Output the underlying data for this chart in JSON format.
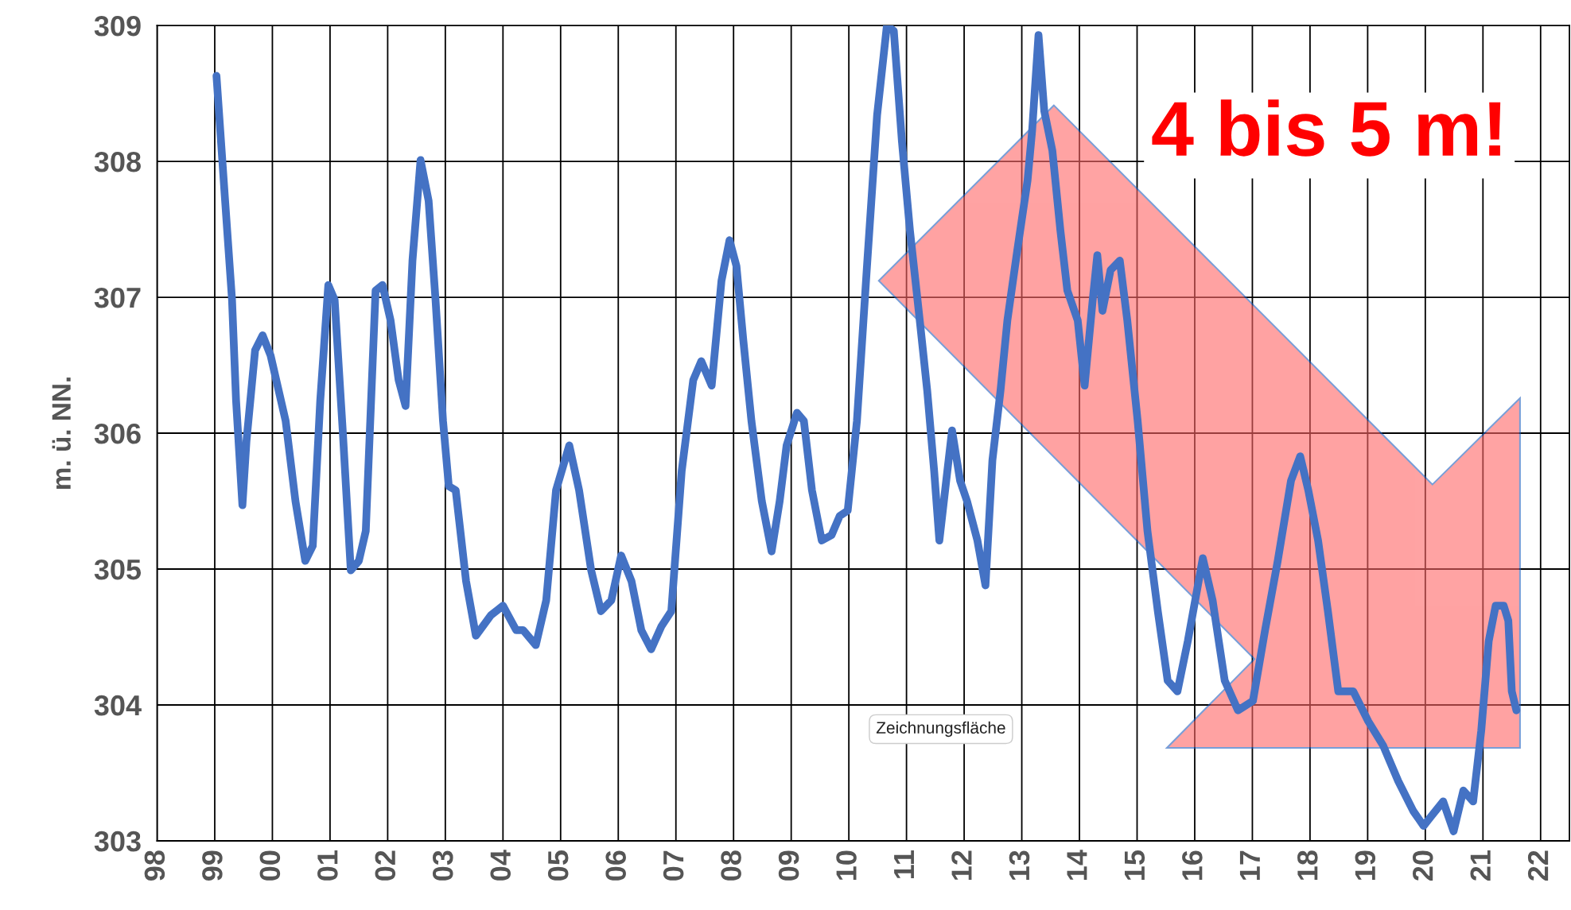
{
  "chart_data": {
    "type": "line",
    "ylabel": "m. ü. NN.",
    "annotations": [
      "4 bis 5 m!",
      "Zeichnungsfläche"
    ],
    "xlim": [
      1998,
      2022.5
    ],
    "ylim": [
      303,
      309
    ],
    "yticks": [
      303,
      304,
      305,
      306,
      307,
      308,
      309
    ],
    "xticks": [
      {
        "value": 1998,
        "label": "98"
      },
      {
        "value": 1999,
        "label": "99"
      },
      {
        "value": 2000,
        "label": "00"
      },
      {
        "value": 2001,
        "label": "01"
      },
      {
        "value": 2002,
        "label": "02"
      },
      {
        "value": 2003,
        "label": "03"
      },
      {
        "value": 2004,
        "label": "04"
      },
      {
        "value": 2005,
        "label": "05"
      },
      {
        "value": 2006,
        "label": "06"
      },
      {
        "value": 2007,
        "label": "07"
      },
      {
        "value": 2008,
        "label": "08"
      },
      {
        "value": 2009,
        "label": "09"
      },
      {
        "value": 2010,
        "label": "10"
      },
      {
        "value": 2011,
        "label": "11"
      },
      {
        "value": 2012,
        "label": "12"
      },
      {
        "value": 2013,
        "label": "13"
      },
      {
        "value": 2014,
        "label": "14"
      },
      {
        "value": 2015,
        "label": "15"
      },
      {
        "value": 2016,
        "label": "16"
      },
      {
        "value": 2017,
        "label": "17"
      },
      {
        "value": 2018,
        "label": "18"
      },
      {
        "value": 2019,
        "label": "19"
      },
      {
        "value": 2020,
        "label": "20"
      },
      {
        "value": 2021,
        "label": "21"
      },
      {
        "value": 2022,
        "label": "22"
      }
    ],
    "grid": true,
    "legend": false,
    "marker": "none",
    "line_style": "solid",
    "series": [
      {
        "color": "#4472c4",
        "x": [
          1999.03,
          1999.18,
          1999.3,
          1999.37,
          1999.48,
          1999.55,
          1999.7,
          1999.83,
          1999.97,
          2000.23,
          2000.4,
          2000.57,
          2000.7,
          2000.83,
          2000.97,
          2001.08,
          2001.22,
          2001.36,
          2001.5,
          2001.62,
          2001.79,
          2001.91,
          2002.05,
          2002.19,
          2002.31,
          2002.43,
          2002.57,
          2002.71,
          2002.83,
          2002.96,
          2003.06,
          2003.18,
          2003.36,
          2003.53,
          2003.79,
          2004.0,
          2004.23,
          2004.35,
          2004.57,
          2004.75,
          2004.92,
          2005.15,
          2005.32,
          2005.53,
          2005.7,
          2005.88,
          2006.05,
          2006.23,
          2006.4,
          2006.57,
          2006.75,
          2006.92,
          2007.1,
          2007.3,
          2007.44,
          2007.62,
          2007.79,
          2007.93,
          2008.05,
          2008.17,
          2008.31,
          2008.49,
          2008.66,
          2008.8,
          2008.92,
          2009.1,
          2009.22,
          2009.36,
          2009.53,
          2009.7,
          2009.84,
          2009.98,
          2010.14,
          2010.31,
          2010.49,
          2010.66,
          2010.78,
          2010.92,
          2011.06,
          2011.23,
          2011.36,
          2011.48,
          2011.57,
          2011.67,
          2011.79,
          2011.93,
          2012.05,
          2012.23,
          2012.37,
          2012.49,
          2012.63,
          2012.75,
          2012.92,
          2013.1,
          2013.18,
          2013.29,
          2013.39,
          2013.53,
          2013.67,
          2013.79,
          2013.97,
          2014.09,
          2014.23,
          2014.31,
          2014.4,
          2014.54,
          2014.7,
          2014.83,
          2015.01,
          2015.18,
          2015.36,
          2015.53,
          2015.7,
          2015.88,
          2016.14,
          2016.31,
          2016.52,
          2016.75,
          2017.01,
          2017.22,
          2017.44,
          2017.67,
          2017.83,
          2017.97,
          2018.14,
          2018.31,
          2018.49,
          2018.75,
          2019.01,
          2019.27,
          2019.53,
          2019.79,
          2019.97,
          2020.1,
          2020.31,
          2020.49,
          2020.66,
          2020.83,
          2020.97,
          2021.1,
          2021.22,
          2021.36,
          2021.44,
          2021.5,
          2021.58
        ],
        "values": [
          308.63,
          307.71,
          306.98,
          306.24,
          305.47,
          305.94,
          306.61,
          306.72,
          306.57,
          306.09,
          305.5,
          305.06,
          305.17,
          306.24,
          307.09,
          306.98,
          306.02,
          304.99,
          305.06,
          305.28,
          307.05,
          307.09,
          306.83,
          306.39,
          306.2,
          307.27,
          308.01,
          307.71,
          306.98,
          306.09,
          305.61,
          305.58,
          304.91,
          304.51,
          304.66,
          304.73,
          304.55,
          304.55,
          304.44,
          304.77,
          305.58,
          305.91,
          305.58,
          304.99,
          304.69,
          304.77,
          305.1,
          304.91,
          304.55,
          304.41,
          304.58,
          304.69,
          305.72,
          306.39,
          306.53,
          306.35,
          307.12,
          307.42,
          307.23,
          306.68,
          306.09,
          305.5,
          305.13,
          305.5,
          305.91,
          306.15,
          306.09,
          305.58,
          305.21,
          305.25,
          305.39,
          305.43,
          306.09,
          307.2,
          308.34,
          309.0,
          308.96,
          308.15,
          307.49,
          306.83,
          306.31,
          305.72,
          305.21,
          305.58,
          306.02,
          305.65,
          305.5,
          305.21,
          304.88,
          305.8,
          306.31,
          306.83,
          307.34,
          307.86,
          308.23,
          308.93,
          308.37,
          308.08,
          307.49,
          307.05,
          306.83,
          306.35,
          306.98,
          307.31,
          306.9,
          307.2,
          307.27,
          306.83,
          306.09,
          305.28,
          304.69,
          304.18,
          304.1,
          304.47,
          305.08,
          304.77,
          304.18,
          303.96,
          304.03,
          304.55,
          305.06,
          305.65,
          305.83,
          305.58,
          305.21,
          304.69,
          304.1,
          304.1,
          303.88,
          303.7,
          303.44,
          303.22,
          303.11,
          303.18,
          303.29,
          303.07,
          303.37,
          303.29,
          303.81,
          304.47,
          304.73,
          304.73,
          304.62,
          304.1,
          303.96
        ]
      }
    ]
  }
}
